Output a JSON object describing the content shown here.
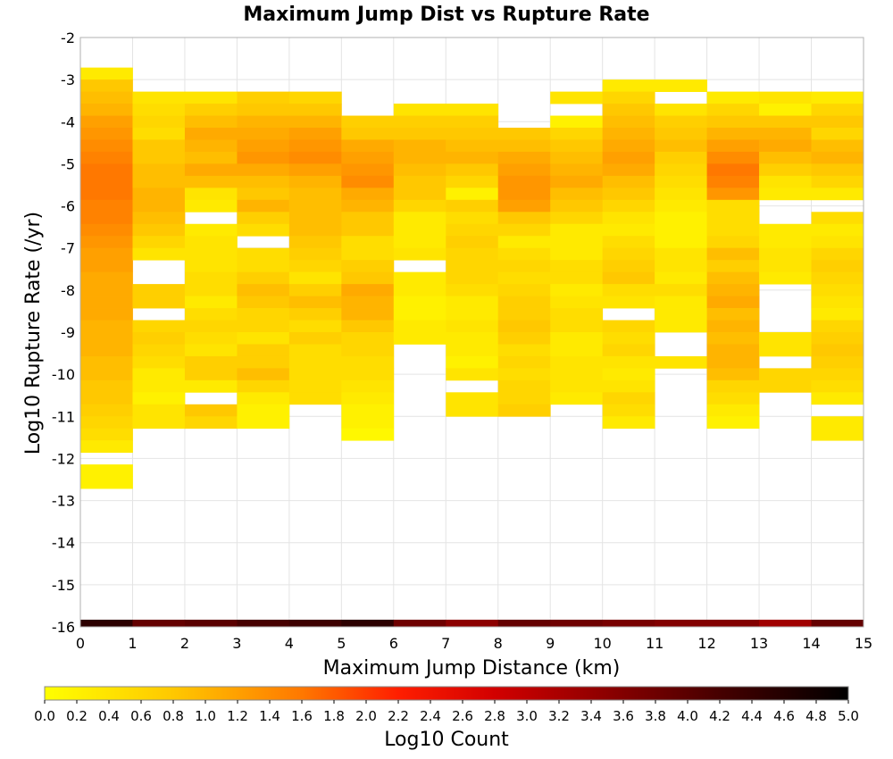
{
  "chart_data": {
    "type": "heatmap",
    "title": "Maximum Jump Dist vs Rupture Rate",
    "xlabel": "Maximum Jump Distance (km)",
    "ylabel": "Log10 Rupture Rate (/yr)",
    "xlim": [
      0,
      15
    ],
    "ylim": [
      -16,
      -2
    ],
    "xticks": [
      "0",
      "1",
      "2",
      "3",
      "4",
      "5",
      "6",
      "7",
      "8",
      "9",
      "10",
      "11",
      "12",
      "13",
      "14",
      "15"
    ],
    "yticks": [
      "-2",
      "-3",
      "-4",
      "-5",
      "-6",
      "-7",
      "-8",
      "-9",
      "-10",
      "-11",
      "-12",
      "-13",
      "-14",
      "-15",
      "-16"
    ],
    "bin_width_x": 1,
    "bin_height_y": 0.2857,
    "grid": true,
    "colorbar": {
      "label": "Log10 Count",
      "range": [
        0,
        5
      ],
      "ticks": [
        "0.0",
        "0.2",
        "0.4",
        "0.6",
        "0.8",
        "1.0",
        "1.2",
        "1.4",
        "1.6",
        "1.8",
        "2.0",
        "2.2",
        "2.4",
        "2.6",
        "2.8",
        "3.0",
        "3.2",
        "3.4",
        "3.6",
        "3.8",
        "4.0",
        "4.2",
        "4.4",
        "4.6",
        "4.8",
        "5.0"
      ],
      "stops": [
        {
          "v": 0.0,
          "c": "#ffff00"
        },
        {
          "v": 0.8,
          "c": "#ffc800"
        },
        {
          "v": 1.6,
          "c": "#ff7800"
        },
        {
          "v": 2.2,
          "c": "#ff1e00"
        },
        {
          "v": 2.8,
          "c": "#d20000"
        },
        {
          "v": 3.5,
          "c": "#8c0000"
        },
        {
          "v": 4.2,
          "c": "#460000"
        },
        {
          "v": 5.0,
          "c": "#000000"
        }
      ]
    },
    "y_bin_top": -2.714,
    "columns": [
      {
        "x": 0,
        "values": [
          0.3,
          0.8,
          0.9,
          1.0,
          1.2,
          1.3,
          1.4,
          1.5,
          1.6,
          1.6,
          1.6,
          1.5,
          1.5,
          1.4,
          1.3,
          1.2,
          1.2,
          1.1,
          1.1,
          1.1,
          1.1,
          1.0,
          1.0,
          1.0,
          0.9,
          0.9,
          0.8,
          0.8,
          0.7,
          0.6,
          0.5,
          0.3,
          null,
          0.2,
          0.2
        ]
      },
      {
        "x": 1,
        "values": [
          null,
          null,
          0.4,
          0.5,
          0.6,
          0.5,
          0.8,
          0.8,
          0.9,
          0.9,
          1.0,
          1.0,
          0.9,
          0.8,
          0.6,
          0.4,
          null,
          null,
          0.7,
          0.7,
          null,
          0.6,
          0.7,
          0.6,
          0.5,
          0.3,
          0.3,
          0.2,
          0.4,
          0.4
        ]
      },
      {
        "x": 2,
        "values": [
          null,
          null,
          0.4,
          0.7,
          0.9,
          1.1,
          1.0,
          0.9,
          1.1,
          0.9,
          0.4,
          0.3,
          null,
          0.3,
          0.4,
          0.4,
          0.4,
          0.5,
          0.5,
          0.3,
          0.5,
          0.6,
          0.5,
          0.4,
          0.7,
          0.7,
          0.3,
          null,
          0.8,
          0.6
        ]
      },
      {
        "x": 3,
        "values": [
          null,
          null,
          0.7,
          0.8,
          1.0,
          1.1,
          1.2,
          1.3,
          1.1,
          0.9,
          0.8,
          1.0,
          0.7,
          0.5,
          null,
          0.5,
          0.5,
          0.7,
          0.9,
          0.8,
          0.6,
          0.6,
          0.4,
          0.7,
          0.7,
          0.9,
          0.6,
          0.3,
          0.2,
          0.2
        ]
      },
      {
        "x": 4,
        "values": [
          null,
          null,
          0.6,
          0.8,
          1.0,
          1.2,
          1.3,
          1.4,
          1.2,
          1.0,
          0.9,
          0.9,
          0.9,
          0.9,
          0.8,
          0.7,
          0.6,
          0.4,
          0.7,
          0.9,
          0.7,
          0.5,
          0.7,
          0.5,
          0.5,
          0.5,
          0.5,
          0.5
        ]
      },
      {
        "x": 5,
        "values": [
          null,
          null,
          null,
          null,
          0.7,
          0.8,
          1.1,
          1.2,
          1.3,
          1.4,
          1.1,
          1.0,
          0.8,
          0.8,
          0.5,
          0.5,
          0.7,
          0.8,
          1.1,
          1.0,
          1.0,
          0.8,
          0.6,
          0.6,
          0.5,
          0.5,
          0.4,
          0.3,
          0.2,
          0.2,
          0.1
        ]
      },
      {
        "x": 6,
        "values": [
          null,
          null,
          null,
          0.4,
          0.7,
          0.8,
          1.0,
          1.0,
          0.9,
          0.8,
          0.8,
          0.6,
          0.3,
          0.3,
          0.3,
          0.4,
          null,
          0.3,
          0.3,
          0.2,
          0.2,
          0.3,
          0.3
        ]
      },
      {
        "x": 7,
        "values": [
          null,
          null,
          null,
          0.4,
          0.7,
          0.8,
          0.9,
          1.0,
          0.8,
          0.6,
          0.2,
          0.7,
          0.5,
          0.6,
          0.7,
          0.6,
          0.6,
          0.6,
          0.5,
          0.3,
          0.3,
          0.4,
          0.3,
          0.3,
          0.2,
          0.4,
          null,
          0.4,
          0.4
        ]
      },
      {
        "x": 8,
        "values": [
          null,
          null,
          null,
          null,
          null,
          0.8,
          0.9,
          1.1,
          1.2,
          1.3,
          1.3,
          1.2,
          0.8,
          0.6,
          0.3,
          0.5,
          0.6,
          0.5,
          0.6,
          0.7,
          0.7,
          0.8,
          0.7,
          0.5,
          0.6,
          0.5,
          0.6,
          0.6,
          0.7
        ]
      },
      {
        "x": 9,
        "values": [
          null,
          null,
          0.4,
          null,
          0.2,
          0.6,
          0.8,
          0.9,
          1.0,
          1.1,
          0.9,
          0.8,
          0.6,
          0.3,
          0.3,
          0.3,
          0.5,
          0.5,
          0.3,
          0.4,
          0.5,
          0.5,
          0.3,
          0.3,
          0.4,
          0.4,
          0.4,
          0.3
        ]
      },
      {
        "x": 10,
        "values": [
          null,
          0.3,
          0.6,
          0.8,
          0.9,
          1.0,
          1.1,
          1.2,
          1.1,
          0.9,
          0.8,
          0.6,
          0.4,
          0.3,
          0.5,
          0.6,
          0.7,
          0.8,
          0.5,
          0.4,
          null,
          0.6,
          0.5,
          0.6,
          0.4,
          0.3,
          0.4,
          0.6,
          0.5,
          0.3
        ]
      },
      {
        "x": 11,
        "values": [
          null,
          0.3,
          null,
          0.4,
          0.7,
          0.8,
          0.9,
          0.7,
          0.6,
          0.5,
          0.4,
          0.3,
          0.2,
          0.2,
          0.2,
          0.4,
          0.4,
          0.3,
          0.5,
          0.3,
          0.3,
          0.3,
          null,
          null,
          0.4
        ]
      },
      {
        "x": 12,
        "values": [
          null,
          null,
          0.3,
          0.6,
          0.8,
          1.0,
          1.2,
          1.4,
          1.6,
          1.5,
          1.3,
          0.5,
          0.5,
          0.5,
          0.6,
          0.9,
          0.7,
          0.9,
          1.0,
          1.1,
          0.9,
          1.0,
          0.9,
          1.0,
          1.0,
          0.9,
          0.6,
          0.5,
          0.3,
          0.2
        ]
      },
      {
        "x": 13,
        "values": [
          null,
          null,
          0.4,
          0.2,
          0.8,
          1.0,
          1.1,
          0.9,
          0.7,
          0.4,
          0.3,
          null,
          null,
          0.3,
          0.3,
          0.4,
          0.4,
          0.3,
          null,
          null,
          null,
          null,
          0.4,
          0.4,
          null,
          0.6,
          0.6
        ]
      },
      {
        "x": 14,
        "values": [
          null,
          null,
          0.3,
          0.6,
          0.8,
          0.6,
          0.9,
          1.0,
          0.8,
          0.6,
          0.3,
          null,
          0.5,
          0.3,
          0.4,
          0.6,
          0.7,
          0.6,
          0.5,
          0.4,
          0.3,
          0.6,
          0.7,
          0.8,
          0.7,
          0.6,
          0.5,
          0.3,
          null,
          0.3,
          0.3
        ]
      }
    ],
    "bottom_row": {
      "y": -16,
      "values": [
        4.5,
        3.9,
        4.0,
        4.2,
        4.3,
        4.5,
        3.8,
        3.5,
        3.9,
        3.8,
        3.7,
        3.6,
        3.6,
        3.3,
        3.9
      ]
    }
  }
}
